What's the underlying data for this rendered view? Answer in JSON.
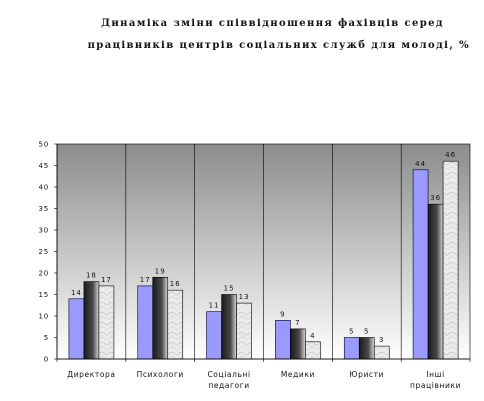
{
  "chart_data": {
    "type": "bar",
    "title": [
      "Динаміка зміни співвідношення фахівців серед",
      "працівників центрів соціальних служб для молоді, %"
    ],
    "categories": [
      [
        "Директора"
      ],
      [
        "Психологи"
      ],
      [
        "Соціальні",
        "педагоги"
      ],
      [
        "Медики"
      ],
      [
        "Юристи"
      ],
      [
        "Інші",
        "працівники"
      ]
    ],
    "series": [
      {
        "values": [
          14,
          17,
          11,
          9,
          5,
          44
        ],
        "color": "#9999ff"
      },
      {
        "values": [
          18,
          19,
          15,
          7,
          5,
          36
        ],
        "color": "#333333"
      },
      {
        "values": [
          17,
          16,
          13,
          4,
          3,
          46
        ],
        "color": "#e8e8e8"
      }
    ],
    "ylim": [
      0,
      50
    ],
    "yticks": [
      0,
      5,
      10,
      15,
      20,
      25,
      30,
      35,
      40,
      45,
      50
    ],
    "grid": false,
    "legend": "none"
  }
}
